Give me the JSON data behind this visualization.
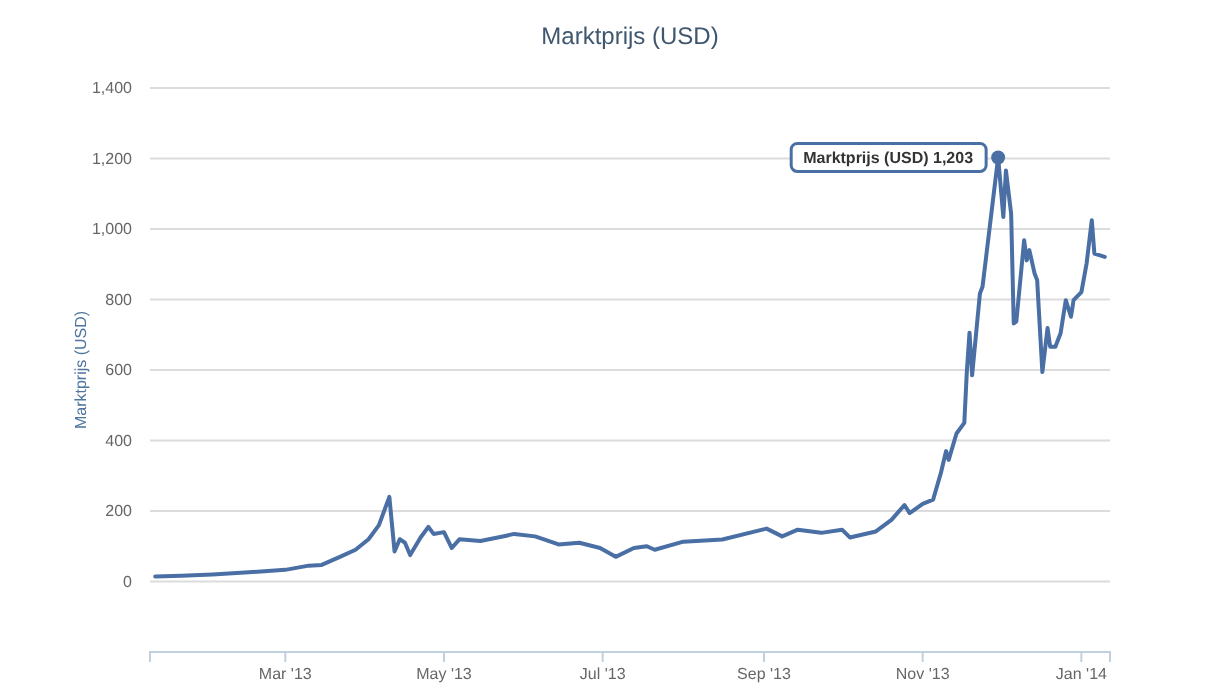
{
  "chart_data": {
    "type": "line",
    "title": "Marktprijs (USD)",
    "ylabel": "Marktprijs (USD)",
    "xlim": [
      "2013-01-08",
      "2014-01-12"
    ],
    "ylim": [
      -200,
      1400
    ],
    "xticks": [
      {
        "value": "2013-03-01",
        "label": "Mar '13"
      },
      {
        "value": "2013-05-01",
        "label": "May '13"
      },
      {
        "value": "2013-07-01",
        "label": "Jul '13"
      },
      {
        "value": "2013-09-01",
        "label": "Sep '13"
      },
      {
        "value": "2013-11-01",
        "label": "Nov '13"
      },
      {
        "value": "2014-01-01",
        "label": "Jan '14"
      }
    ],
    "yticks": [
      0,
      {
        "value": 200,
        "label": "200"
      },
      {
        "value": 400,
        "label": "400"
      },
      {
        "value": 600,
        "label": "600"
      },
      {
        "value": 800,
        "label": "800"
      },
      {
        "value": 1000,
        "label": "1,000"
      },
      {
        "value": 1200,
        "label": "1,200"
      },
      {
        "value": 1400,
        "label": "1,400"
      }
    ],
    "grid": "y",
    "marker": "none",
    "line_style": "solid",
    "annotations": [
      {
        "text": "Marktprijs (USD) 1,203",
        "x": "2013-11-30",
        "y": 1203
      }
    ],
    "series": [
      {
        "color": "#4a6fa5",
        "x": [
          "2013-01-10",
          "2013-01-20",
          "2013-02-01",
          "2013-02-15",
          "2013-03-01",
          "2013-03-10",
          "2013-03-15",
          "2013-03-22",
          "2013-03-28",
          "2013-04-02",
          "2013-04-06",
          "2013-04-10",
          "2013-04-12",
          "2013-04-14",
          "2013-04-16",
          "2013-04-18",
          "2013-04-22",
          "2013-04-25",
          "2013-04-27",
          "2013-05-01",
          "2013-05-04",
          "2013-05-07",
          "2013-05-15",
          "2013-05-25",
          "2013-05-28",
          "2013-06-05",
          "2013-06-09",
          "2013-06-14",
          "2013-06-22",
          "2013-06-30",
          "2013-07-06",
          "2013-07-13",
          "2013-07-18",
          "2013-07-21",
          "2013-08-01",
          "2013-08-16",
          "2013-09-02",
          "2013-09-08",
          "2013-09-14",
          "2013-09-23",
          "2013-10-01",
          "2013-10-04",
          "2013-10-14",
          "2013-10-20",
          "2013-10-25",
          "2013-10-27",
          "2013-11-01",
          "2013-11-05",
          "2013-11-08",
          "2013-11-10",
          "2013-11-11",
          "2013-11-14",
          "2013-11-17",
          "2013-11-18",
          "2013-11-19",
          "2013-11-20",
          "2013-11-23",
          "2013-11-24",
          "2013-11-28",
          "2013-11-30",
          "2013-12-02",
          "2013-12-03",
          "2013-12-05",
          "2013-12-06",
          "2013-12-07",
          "2013-12-10",
          "2013-12-11",
          "2013-12-12",
          "2013-12-14",
          "2013-12-15",
          "2013-12-17",
          "2013-12-19",
          "2013-12-20",
          "2013-12-22",
          "2013-12-24",
          "2013-12-26",
          "2013-12-28",
          "2013-12-29",
          "2014-01-01",
          "2014-01-03",
          "2014-01-05",
          "2014-01-06",
          "2014-01-10"
        ],
        "values": [
          14,
          16,
          20,
          26,
          33,
          45,
          47,
          70,
          90,
          120,
          160,
          240,
          85,
          120,
          110,
          75,
          125,
          155,
          135,
          140,
          95,
          120,
          115,
          130,
          135,
          128,
          118,
          105,
          110,
          95,
          70,
          95,
          100,
          90,
          113,
          119,
          150,
          128,
          147,
          138,
          147,
          125,
          142,
          175,
          217,
          194,
          220,
          232,
          308,
          370,
          345,
          420,
          450,
          600,
          706,
          585,
          817,
          836,
          1081,
          1203,
          1034,
          1166,
          1043,
          732,
          738,
          968,
          911,
          940,
          874,
          855,
          594,
          719,
          666,
          666,
          704,
          798,
          751,
          798,
          821,
          902,
          1025,
          930,
          921
        ]
      }
    ]
  }
}
